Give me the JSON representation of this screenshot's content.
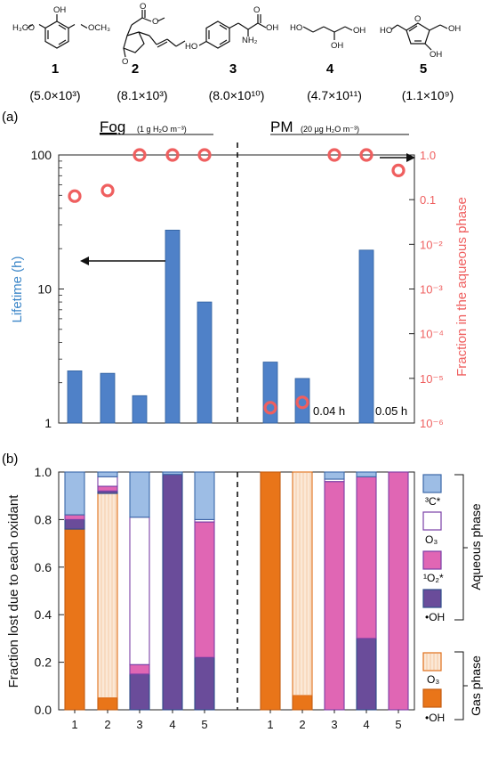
{
  "compounds": [
    {
      "number": "1",
      "henry": "(5.0×10³)"
    },
    {
      "number": "2",
      "henry": "(8.1×10³)"
    },
    {
      "number": "3",
      "henry": "(8.0×10¹⁰)"
    },
    {
      "number": "4",
      "henry": "(4.7×10¹¹)"
    },
    {
      "number": "5",
      "henry": "(1.1×10⁹)"
    }
  ],
  "chart_data": [
    {
      "type": "bar",
      "panel_label": "(a)",
      "groups": [
        {
          "title": "Fog",
          "subtitle": "(1 g H₂O m⁻³)"
        },
        {
          "title": "PM",
          "subtitle": "(20 µg H₂O m⁻³)"
        }
      ],
      "categories": [
        "1",
        "2",
        "3",
        "4",
        "5"
      ],
      "ylabel": "Lifetime (h)",
      "y2label": "Fraction in the aqueous phase",
      "yscale": "log",
      "ylim": [
        1,
        100
      ],
      "yticks": [
        "1",
        "10",
        "100"
      ],
      "y2scale": "log",
      "y2lim": [
        1e-06,
        1
      ],
      "y2ticks": [
        "10⁻⁶",
        "10⁻⁵",
        "10⁻⁴",
        "10⁻³",
        "10⁻²",
        "0.1",
        "1.0"
      ],
      "bar_color": "#4f81c8",
      "marker_color": "#ef5f5f",
      "series": [
        {
          "name": "Lifetime",
          "axis": "left",
          "fog": [
            2.45,
            2.35,
            1.6,
            27.5,
            8.0
          ],
          "pm": [
            2.85,
            2.15,
            null,
            19.5,
            null
          ]
        },
        {
          "name": "Fraction in the aqueous phase",
          "axis": "right",
          "fog": [
            0.12,
            0.16,
            1.0,
            1.0,
            1.0
          ],
          "pm": [
            2.2e-06,
            2.9e-06,
            1.0,
            1.0,
            0.45
          ]
        }
      ],
      "annotations": [
        "0.04 h",
        "0.05 h"
      ]
    },
    {
      "type": "bar",
      "stacked": true,
      "panel_label": "(b)",
      "categories": [
        "1",
        "2",
        "3",
        "4",
        "5"
      ],
      "ylabel": "Fraction lost due to each oxidant",
      "ylim": [
        0,
        1
      ],
      "yticks": [
        "0.0",
        "0.2",
        "0.4",
        "0.6",
        "0.8",
        "1.0"
      ],
      "legend_groups": [
        {
          "label": "Aqueous phase",
          "entries": [
            {
              "key": "aq_3C",
              "label": "³C*",
              "fill": "#9dbde5",
              "stroke": "#3b68a8"
            },
            {
              "key": "aq_O3",
              "label": "O₃",
              "fill": "#ffffff",
              "stroke": "#7a3fa6"
            },
            {
              "key": "aq_1O2",
              "label": "¹O₂*",
              "fill": "#e066b4",
              "stroke": "#7a3fa6"
            },
            {
              "key": "aq_OH",
              "label": "•OH",
              "fill": "#6a4c9a",
              "stroke": "#2f4d8a"
            }
          ]
        },
        {
          "label": "Gas phase",
          "entries": [
            {
              "key": "gas_O3",
              "label": "O₃",
              "fill": "#fbe8d6",
              "stroke": "#e06f1a"
            },
            {
              "key": "gas_OH",
              "label": "•OH",
              "fill": "#e97519",
              "stroke": "#c45c10"
            }
          ]
        }
      ],
      "stack_order": [
        "gas_OH",
        "gas_O3",
        "aq_OH",
        "aq_1O2",
        "aq_O3",
        "aq_3C"
      ],
      "fog": [
        {
          "gas_OH": 0.76,
          "gas_O3": 0.0,
          "aq_OH": 0.04,
          "aq_1O2": 0.02,
          "aq_O3": 0.0,
          "aq_3C": 0.18
        },
        {
          "gas_OH": 0.05,
          "gas_O3": 0.86,
          "aq_OH": 0.01,
          "aq_1O2": 0.02,
          "aq_O3": 0.04,
          "aq_3C": 0.02
        },
        {
          "gas_OH": 0.0,
          "gas_O3": 0.0,
          "aq_OH": 0.15,
          "aq_1O2": 0.04,
          "aq_O3": 0.62,
          "aq_3C": 0.19
        },
        {
          "gas_OH": 0.0,
          "gas_O3": 0.0,
          "aq_OH": 0.99,
          "aq_1O2": 0.0,
          "aq_O3": 0.0,
          "aq_3C": 0.01
        },
        {
          "gas_OH": 0.0,
          "gas_O3": 0.0,
          "aq_OH": 0.22,
          "aq_1O2": 0.57,
          "aq_O3": 0.01,
          "aq_3C": 0.2
        }
      ],
      "pm": [
        {
          "gas_OH": 1.0,
          "gas_O3": 0.0,
          "aq_OH": 0.0,
          "aq_1O2": 0.0,
          "aq_O3": 0.0,
          "aq_3C": 0.0
        },
        {
          "gas_OH": 0.06,
          "gas_O3": 0.94,
          "aq_OH": 0.0,
          "aq_1O2": 0.0,
          "aq_O3": 0.0,
          "aq_3C": 0.0
        },
        {
          "gas_OH": 0.0,
          "gas_O3": 0.0,
          "aq_OH": 0.0,
          "aq_1O2": 0.96,
          "aq_O3": 0.01,
          "aq_3C": 0.03
        },
        {
          "gas_OH": 0.0,
          "gas_O3": 0.0,
          "aq_OH": 0.3,
          "aq_1O2": 0.68,
          "aq_O3": 0.0,
          "aq_3C": 0.02
        },
        {
          "gas_OH": 0.0,
          "gas_O3": 0.0,
          "aq_OH": 0.0,
          "aq_1O2": 1.0,
          "aq_O3": 0.0,
          "aq_3C": 0.0
        }
      ]
    }
  ]
}
